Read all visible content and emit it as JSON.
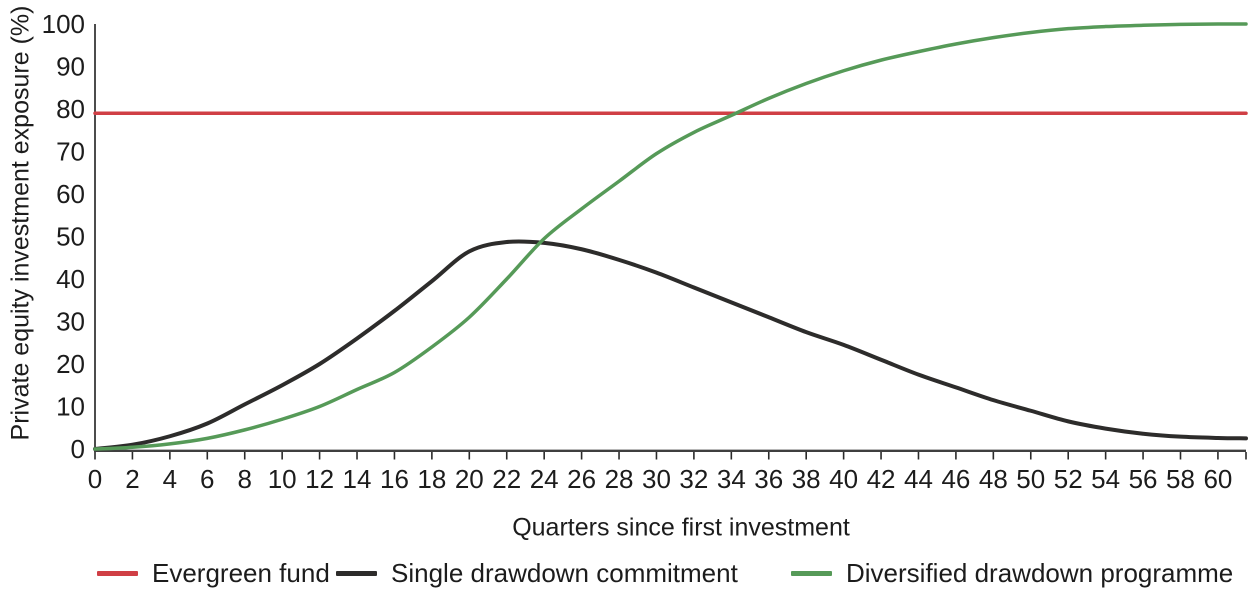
{
  "chart_data": {
    "type": "line",
    "title": "",
    "xlabel": "Quarters since first investment",
    "ylabel": "Private equity investment exposure (%)",
    "xlim": [
      0,
      61.5
    ],
    "ylim": [
      0,
      100
    ],
    "x_ticks": [
      0,
      2,
      4,
      6,
      8,
      10,
      12,
      14,
      16,
      18,
      20,
      22,
      24,
      26,
      28,
      30,
      32,
      34,
      36,
      38,
      40,
      42,
      44,
      46,
      48,
      50,
      52,
      54,
      56,
      58,
      60
    ],
    "y_ticks": [
      0,
      10,
      20,
      30,
      40,
      50,
      60,
      70,
      80,
      90,
      100
    ],
    "grid": false,
    "legend_position": "bottom",
    "x": [
      0,
      2,
      4,
      6,
      8,
      10,
      12,
      14,
      16,
      18,
      20,
      22,
      24,
      26,
      28,
      30,
      32,
      34,
      36,
      38,
      40,
      42,
      44,
      46,
      48,
      50,
      52,
      54,
      56,
      58,
      60,
      61.5
    ],
    "series": [
      {
        "name": "Evergreen fund",
        "color": "#d03f45",
        "x": [
          0,
          61.5
        ],
        "values": [
          79,
          79
        ]
      },
      {
        "name": "Single drawdown commitment",
        "color": "#2d2c2b",
        "values": [
          0,
          1,
          3,
          6,
          10.5,
          15,
          20,
          26,
          32.5,
          39.5,
          46.5,
          48.7,
          48.5,
          47,
          44.5,
          41.5,
          38,
          34.5,
          31,
          27.5,
          24.5,
          21,
          17.5,
          14.5,
          11.5,
          9,
          6.5,
          4.8,
          3.6,
          2.9,
          2.6,
          2.5
        ]
      },
      {
        "name": "Diversified drawdown programme",
        "color": "#569a58",
        "values": [
          0,
          0.4,
          1.2,
          2.5,
          4.5,
          7,
          10,
          14,
          18,
          24,
          31,
          40,
          49.5,
          56.5,
          63,
          69.5,
          74.5,
          78.5,
          82.5,
          86,
          89,
          91.5,
          93.5,
          95.3,
          96.8,
          98,
          98.9,
          99.4,
          99.7,
          99.9,
          100,
          100
        ]
      }
    ]
  }
}
